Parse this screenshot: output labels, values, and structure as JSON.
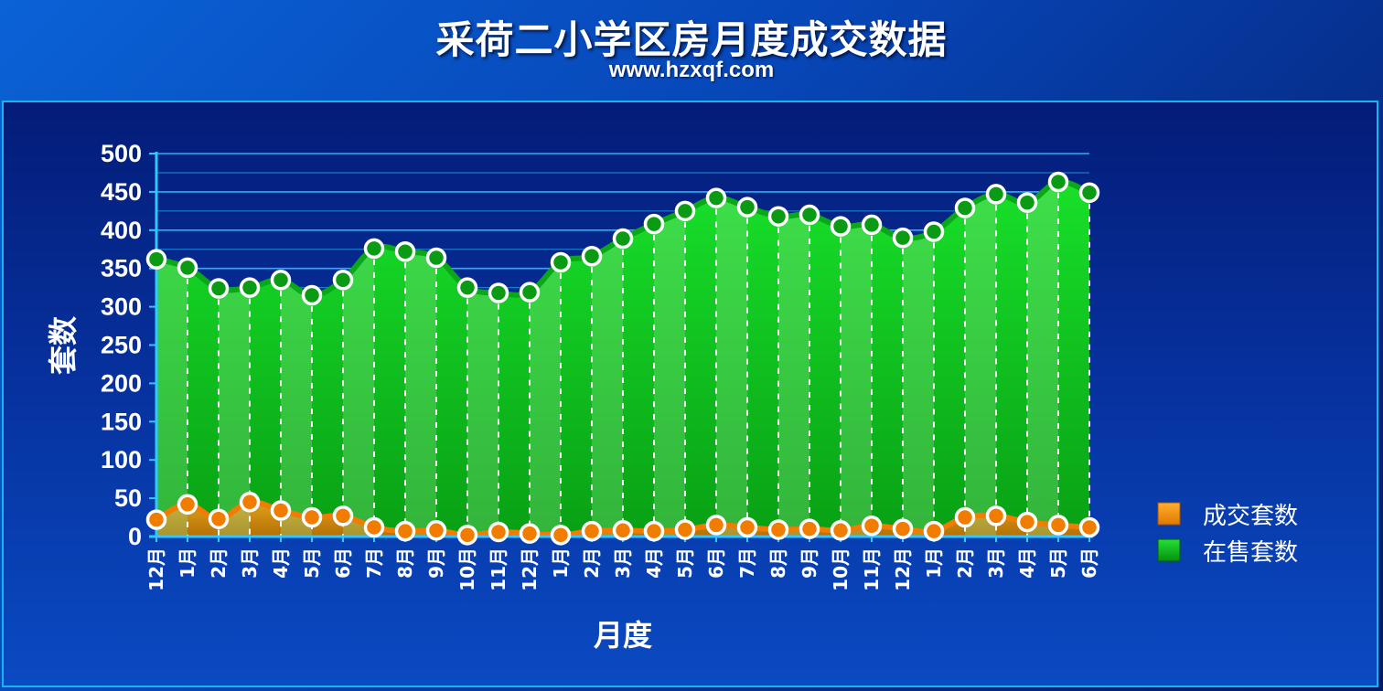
{
  "page": {
    "title": "采荷二小学区房月度成交数据",
    "subtitle": "www.hzxqf.com"
  },
  "chart_data": {
    "type": "area",
    "title": "采荷二小学区房月度成交数据",
    "subtitle": "www.hzxqf.com",
    "xlabel": "月度",
    "ylabel": "套数",
    "ylim": [
      0,
      500
    ],
    "yticks": [
      0,
      50,
      100,
      150,
      200,
      250,
      300,
      350,
      400,
      450,
      500
    ],
    "grid": true,
    "legend_position": "right",
    "categories": [
      "12月",
      "1月",
      "2月",
      "3月",
      "4月",
      "5月",
      "6月",
      "7月",
      "8月",
      "9月",
      "10月",
      "11月",
      "12月",
      "1月",
      "2月",
      "3月",
      "4月",
      "5月",
      "6月",
      "7月",
      "8月",
      "9月",
      "10月",
      "11月",
      "12月",
      "1月",
      "2月",
      "3月",
      "4月",
      "5月",
      "6月"
    ],
    "series": [
      {
        "name": "在售套数",
        "color": "#12c81e",
        "values": [
          362,
          351,
          324,
          325,
          335,
          315,
          335,
          376,
          372,
          364,
          325,
          318,
          319,
          358,
          366,
          389,
          408,
          425,
          442,
          430,
          418,
          420,
          405,
          407,
          390,
          398,
          429,
          447,
          436,
          463,
          449
        ]
      },
      {
        "name": "成交套数",
        "color": "#f08c00",
        "values": [
          22,
          42,
          23,
          45,
          34,
          25,
          27,
          12,
          7,
          8,
          2,
          6,
          4,
          2,
          7,
          8,
          7,
          9,
          15,
          12,
          9,
          10,
          8,
          14,
          10,
          7,
          25,
          27,
          19,
          15,
          12
        ]
      }
    ]
  }
}
